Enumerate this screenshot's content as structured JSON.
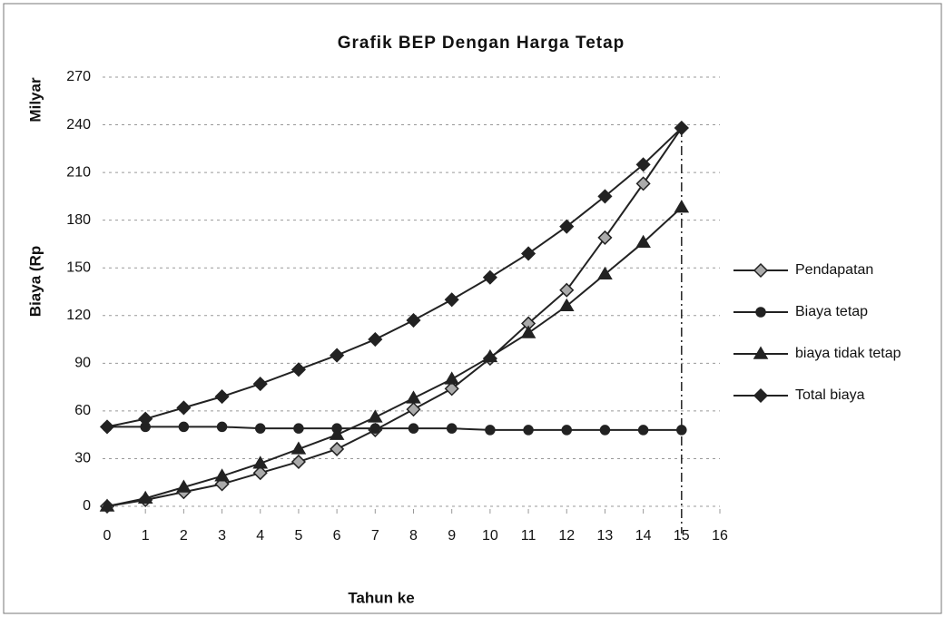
{
  "chart_data": {
    "type": "line",
    "title": "Grafik BEP Dengan Harga Tetap",
    "xlabel": "Tahun ke",
    "ylabel": [
      "Biaya (Rp",
      "Milyar"
    ],
    "x": [
      0,
      1,
      2,
      3,
      4,
      5,
      6,
      7,
      8,
      9,
      10,
      11,
      12,
      13,
      14,
      15
    ],
    "xlim": [
      0,
      16
    ],
    "xticks": [
      0,
      1,
      2,
      3,
      4,
      5,
      6,
      7,
      8,
      9,
      10,
      11,
      12,
      13,
      14,
      15,
      16
    ],
    "ylim": [
      0,
      270
    ],
    "yticks": [
      0,
      30,
      60,
      90,
      120,
      150,
      180,
      210,
      240,
      270
    ],
    "grid": true,
    "legend": "right",
    "series": [
      {
        "name": "Pendapatan",
        "color": "#222",
        "marker": "diamond-open",
        "values": [
          0,
          4,
          9,
          14,
          21,
          28,
          36,
          48,
          61,
          74,
          93,
          115,
          136,
          169,
          203,
          238
        ]
      },
      {
        "name": "Biaya tetap",
        "color": "#222",
        "marker": "circle",
        "values": [
          50,
          50,
          50,
          50,
          49,
          49,
          49,
          49,
          49,
          49,
          48,
          48,
          48,
          48,
          48,
          48
        ]
      },
      {
        "name": "biaya tidak tetap",
        "color": "#222",
        "marker": "triangle",
        "values": [
          0,
          5,
          12,
          19,
          27,
          36,
          45,
          56,
          68,
          80,
          94,
          109,
          126,
          146,
          166,
          188
        ]
      },
      {
        "name": "Total biaya",
        "color": "#222",
        "marker": "diamond",
        "values": [
          50,
          55,
          62,
          69,
          77,
          86,
          95,
          105,
          117,
          130,
          144,
          159,
          176,
          195,
          215,
          238
        ]
      }
    ]
  }
}
